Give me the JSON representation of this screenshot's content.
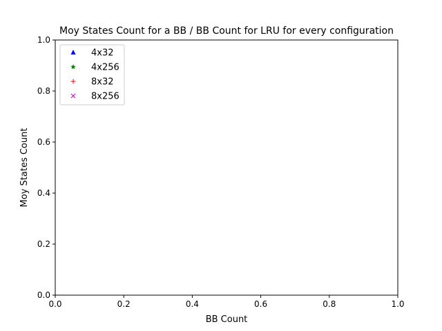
{
  "chart_data": {
    "type": "scatter",
    "title": "Moy States Count for a BB / BB Count for LRU for every configuration",
    "xlabel": "BB Count",
    "ylabel": "Moy States Count",
    "xlim": [
      0.0,
      1.0
    ],
    "ylim": [
      0.0,
      1.0
    ],
    "xticks": [
      "0.0",
      "0.2",
      "0.4",
      "0.6",
      "0.8",
      "1.0"
    ],
    "yticks": [
      "0.0",
      "0.2",
      "0.4",
      "0.6",
      "0.8",
      "1.0"
    ],
    "grid": false,
    "legend_position": "top-left",
    "series": [
      {
        "name": "4x32",
        "color": "#0000ff",
        "marker": "triangle",
        "points": []
      },
      {
        "name": "4x256",
        "color": "#008000",
        "marker": "star",
        "points": []
      },
      {
        "name": "8x32",
        "color": "#ff0000",
        "marker": "plus",
        "points": []
      },
      {
        "name": "8x256",
        "color": "#bf00bf",
        "marker": "x",
        "points": []
      }
    ]
  }
}
